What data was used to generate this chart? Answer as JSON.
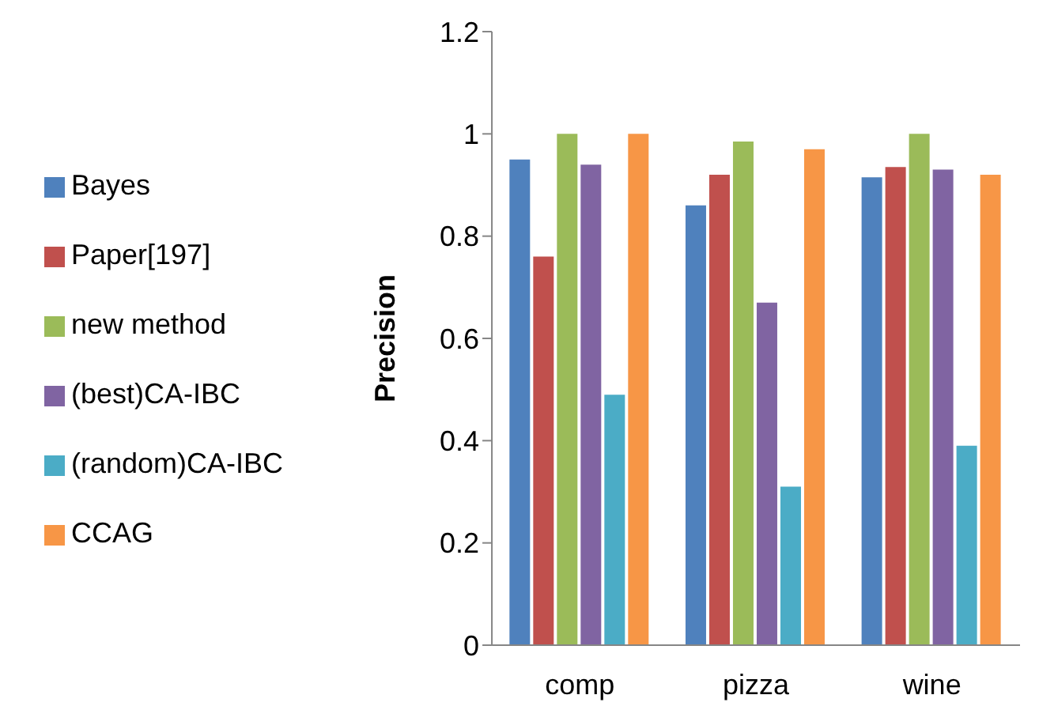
{
  "chart_data": {
    "type": "bar",
    "ylabel": "Precision",
    "categories": [
      "comp",
      "pizza",
      "wine"
    ],
    "series": [
      {
        "name": "Bayes",
        "color": "#4f81bd",
        "values": [
          0.95,
          0.86,
          0.915
        ]
      },
      {
        "name": "Paper[197]",
        "color": "#c0504d",
        "values": [
          0.76,
          0.92,
          0.935
        ]
      },
      {
        "name": "new method",
        "color": "#9bbb59",
        "values": [
          1.0,
          0.985,
          1.0
        ]
      },
      {
        "name": "(best)CA-IBC",
        "color": "#8064a2",
        "values": [
          0.94,
          0.67,
          0.93
        ]
      },
      {
        "name": "(random)CA-IBC",
        "color": "#4bacc6",
        "values": [
          0.49,
          0.31,
          0.39
        ]
      },
      {
        "name": "CCAG",
        "color": "#f79646",
        "values": [
          1.0,
          0.97,
          0.92
        ]
      }
    ],
    "ylim": [
      0,
      1.2
    ],
    "yticks": [
      0,
      0.2,
      0.4,
      0.6,
      0.8,
      1,
      1.2
    ],
    "grid": false,
    "legend": "left"
  }
}
